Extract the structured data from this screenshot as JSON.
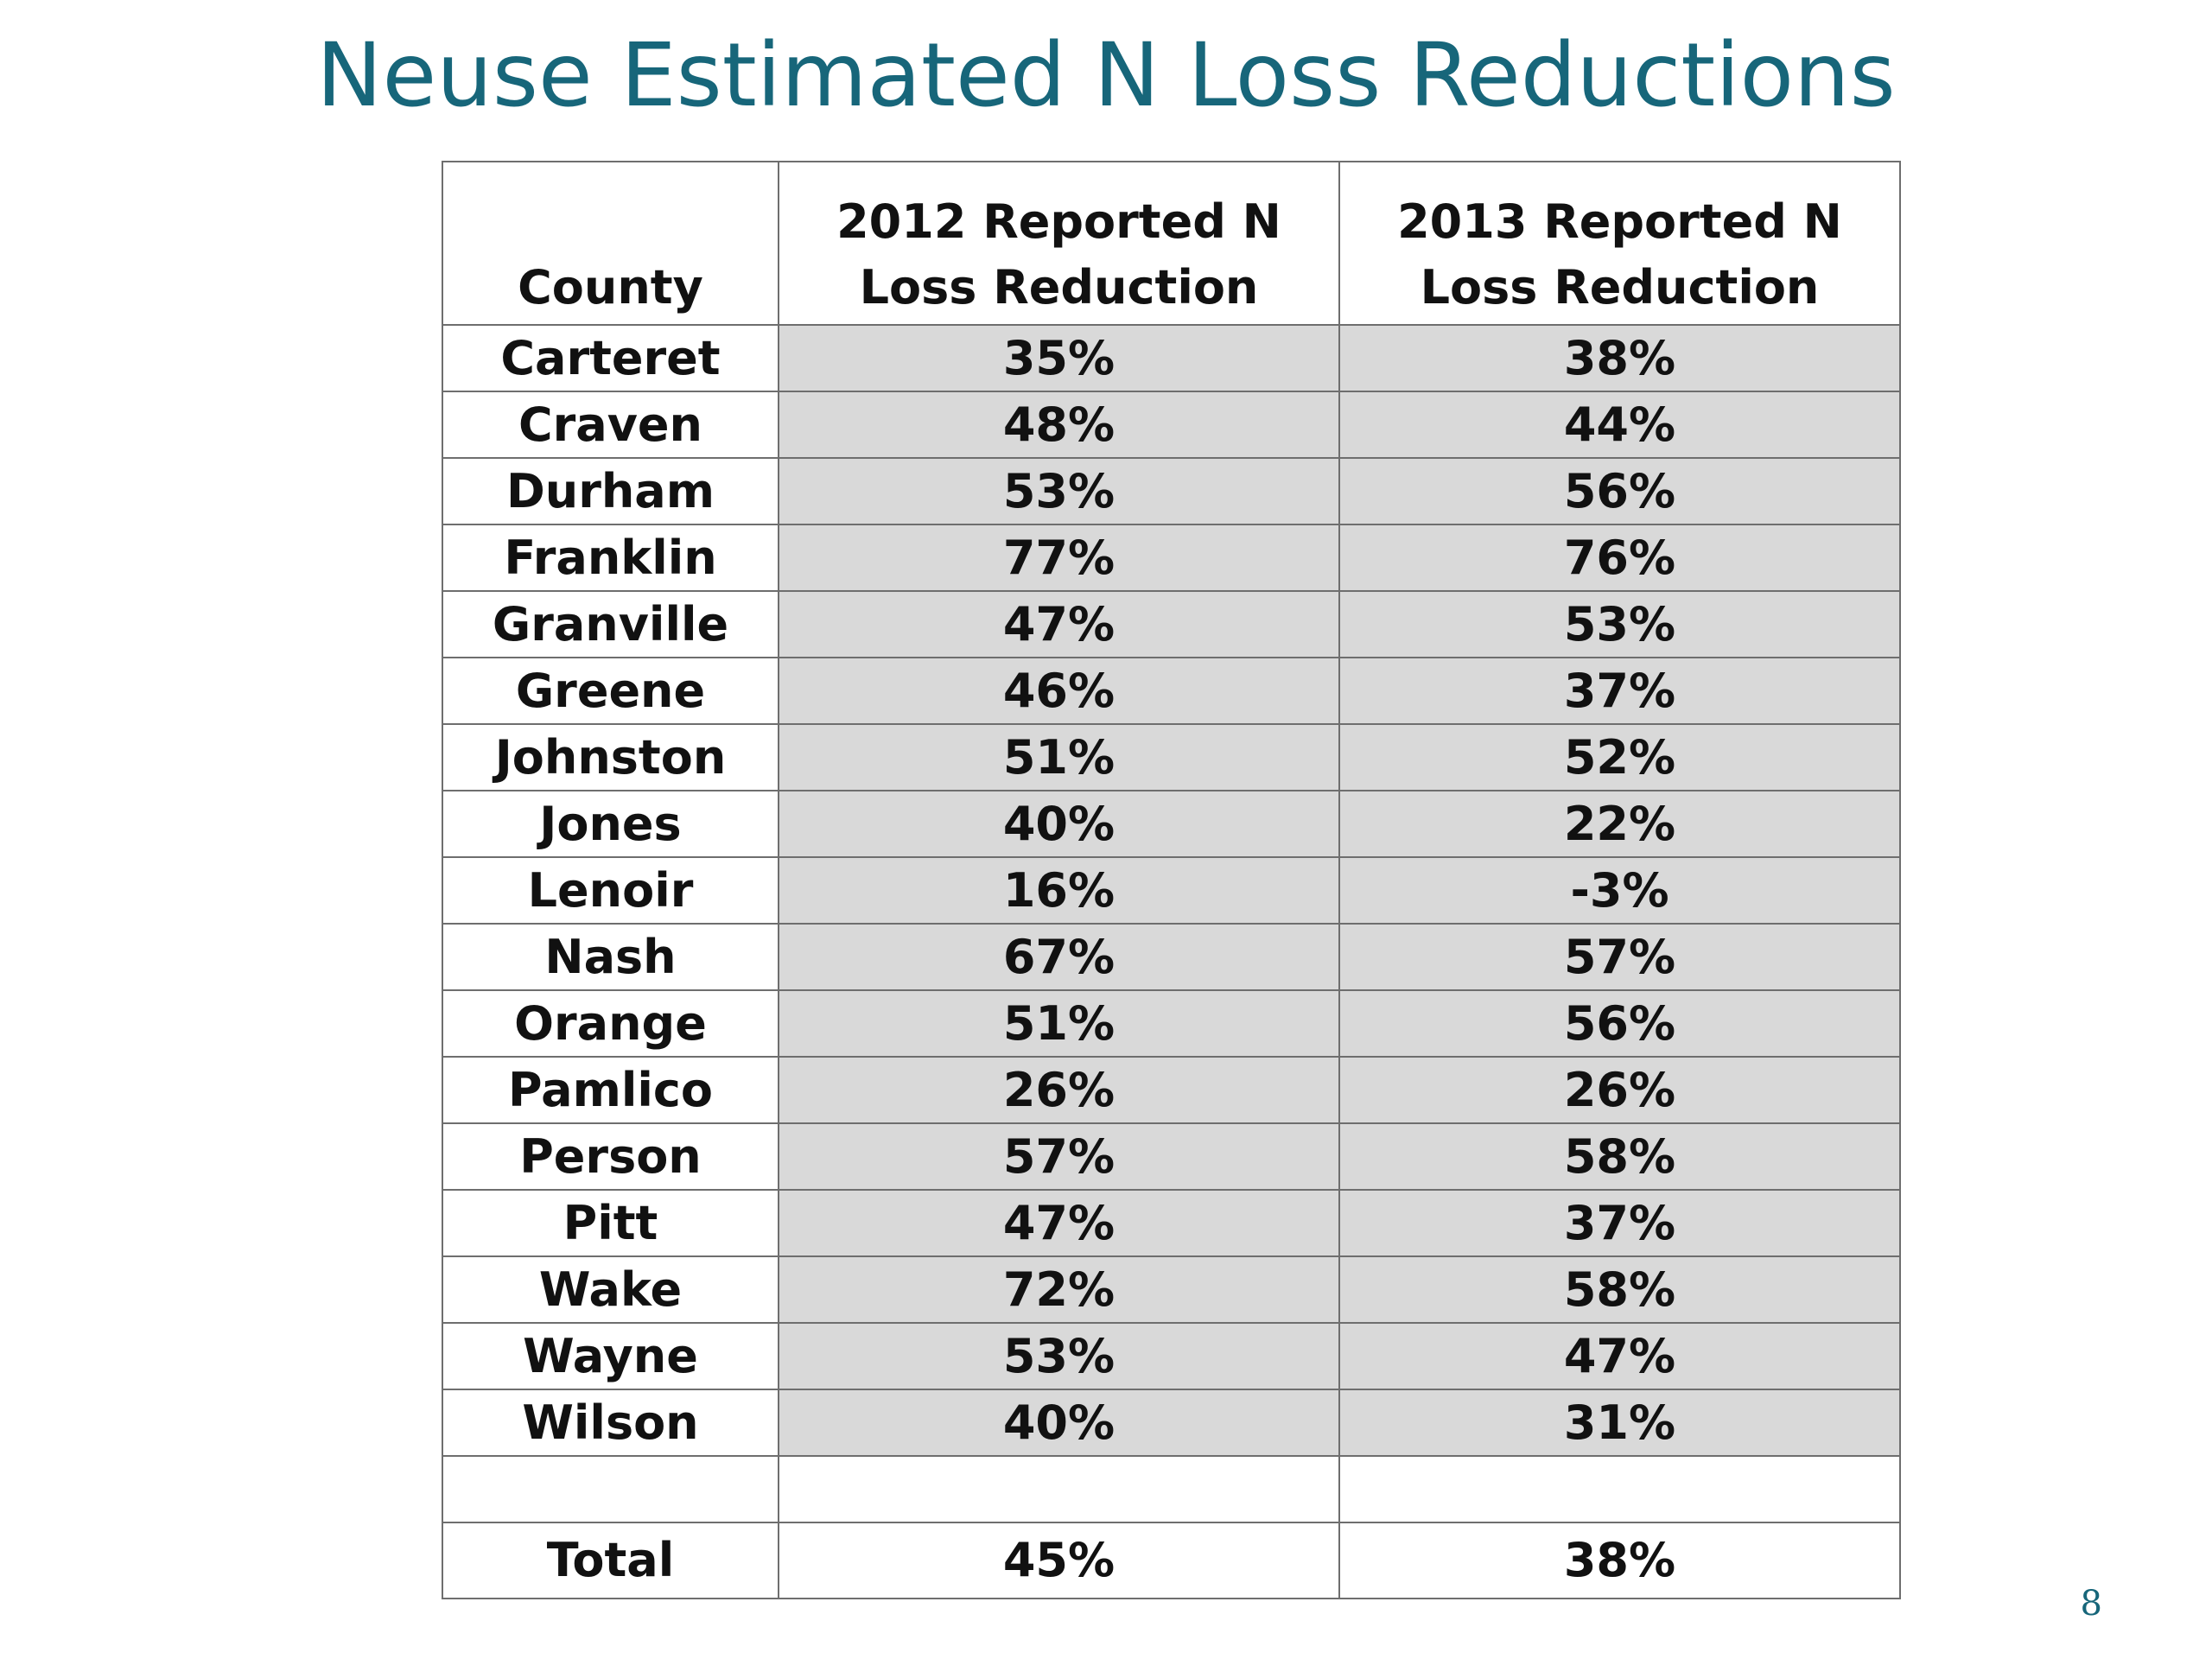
{
  "slide": {
    "title": "Neuse Estimated N Loss Reductions",
    "page_number": "8",
    "title_color": "#17667a"
  },
  "table": {
    "headers": [
      "County",
      "2012 Reported N Loss Reduction",
      "2013 Reported N Loss Reduction"
    ],
    "rows": [
      {
        "county": "Carteret",
        "y2012": "35%",
        "y2013": "38%"
      },
      {
        "county": "Craven",
        "y2012": "48%",
        "y2013": "44%"
      },
      {
        "county": "Durham",
        "y2012": "53%",
        "y2013": "56%"
      },
      {
        "county": "Franklin",
        "y2012": "77%",
        "y2013": "76%"
      },
      {
        "county": "Granville",
        "y2012": "47%",
        "y2013": "53%"
      },
      {
        "county": "Greene",
        "y2012": "46%",
        "y2013": "37%"
      },
      {
        "county": "Johnston",
        "y2012": "51%",
        "y2013": "52%"
      },
      {
        "county": "Jones",
        "y2012": "40%",
        "y2013": "22%"
      },
      {
        "county": "Lenoir",
        "y2012": "16%",
        "y2013": "-3%"
      },
      {
        "county": "Nash",
        "y2012": "67%",
        "y2013": "57%"
      },
      {
        "county": "Orange",
        "y2012": "51%",
        "y2013": "56%"
      },
      {
        "county": "Pamlico",
        "y2012": "26%",
        "y2013": "26%"
      },
      {
        "county": "Person",
        "y2012": "57%",
        "y2013": "58%"
      },
      {
        "county": "Pitt",
        "y2012": "47%",
        "y2013": "37%"
      },
      {
        "county": "Wake",
        "y2012": "72%",
        "y2013": "58%"
      },
      {
        "county": "Wayne",
        "y2012": "53%",
        "y2013": "47%"
      },
      {
        "county": "Wilson",
        "y2012": "40%",
        "y2013": "31%"
      }
    ],
    "total": {
      "county": "Total",
      "y2012": "45%",
      "y2013": "38%"
    },
    "value_cell_color": "#d9d9d9"
  }
}
